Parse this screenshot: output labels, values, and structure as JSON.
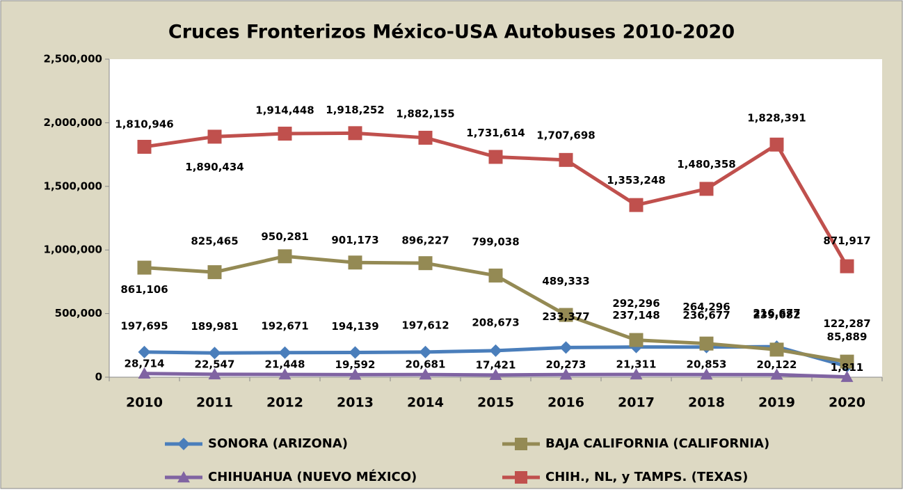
{
  "chart_data": {
    "type": "line",
    "title": "Cruces Fronterizos México-USA Autobuses 2010-2020",
    "categories": [
      "2010",
      "2011",
      "2012",
      "2013",
      "2014",
      "2015",
      "2016",
      "2017",
      "2018",
      "2019",
      "2020"
    ],
    "ylim": [
      0,
      2500000
    ],
    "yticks": [
      0,
      {
        "value": 500000,
        "label": "500,000"
      },
      {
        "value": 1000000,
        "label": "1,000,000"
      },
      {
        "value": 1500000,
        "label": "1,500,000"
      },
      {
        "value": 2000000,
        "label": "2,000,000"
      },
      {
        "value": 2500000,
        "label": "2,500,000"
      }
    ],
    "grid": false,
    "legend": "bottom",
    "series": [
      {
        "name": "SONORA (ARIZONA)",
        "color": "#4a7ebb",
        "marker": "diamond",
        "values": [
          197695,
          189981,
          192671,
          194139,
          197612,
          208673,
          233377,
          237148,
          236677,
          239682,
          85889
        ],
        "value_labels": [
          "197,695",
          "189,981",
          "192,671",
          "194,139",
          "197,612",
          "208,673",
          "233,377",
          "237,148",
          "236,677",
          "239,682",
          "85,889"
        ]
      },
      {
        "name": "BAJA CALIFORNIA (CALIFORNIA)",
        "color": "#948a54",
        "marker": "square",
        "values": [
          861106,
          825465,
          950281,
          901173,
          896227,
          799038,
          489333,
          292296,
          264296,
          216677,
          122287
        ],
        "value_labels": [
          "861,106",
          "825,465",
          "950,281",
          "901,173",
          "896,227",
          "799,038",
          "489,333",
          "292,296",
          "264,296",
          "216,677",
          "122,287"
        ]
      },
      {
        "name": "CHIHUAHUA (NUEVO MÉXICO)",
        "color": "#8064a2",
        "marker": "triangle",
        "values": [
          28714,
          22547,
          21448,
          19592,
          20681,
          17421,
          20273,
          21311,
          20853,
          20122,
          1811
        ],
        "value_labels": [
          "28,714",
          "22,547",
          "21,448",
          "19,592",
          "20,681",
          "17,421",
          "20,273",
          "21,311",
          "20,853",
          "20,122",
          "1,811"
        ]
      },
      {
        "name": "CHIH., NL, y TAMPS. (TEXAS)",
        "color": "#c0504d",
        "marker": "square",
        "values": [
          1810946,
          1890434,
          1914448,
          1918252,
          1882155,
          1731614,
          1707698,
          1353248,
          1480358,
          1828391,
          871917
        ],
        "value_labels": [
          "1,810,946",
          "1,890,434",
          "1,914,448",
          "1,918,252",
          "1,882,155",
          "1,731,614",
          "1,707,698",
          "1,353,248",
          "1,480,358",
          "1,828,391",
          "871,917"
        ]
      }
    ]
  }
}
